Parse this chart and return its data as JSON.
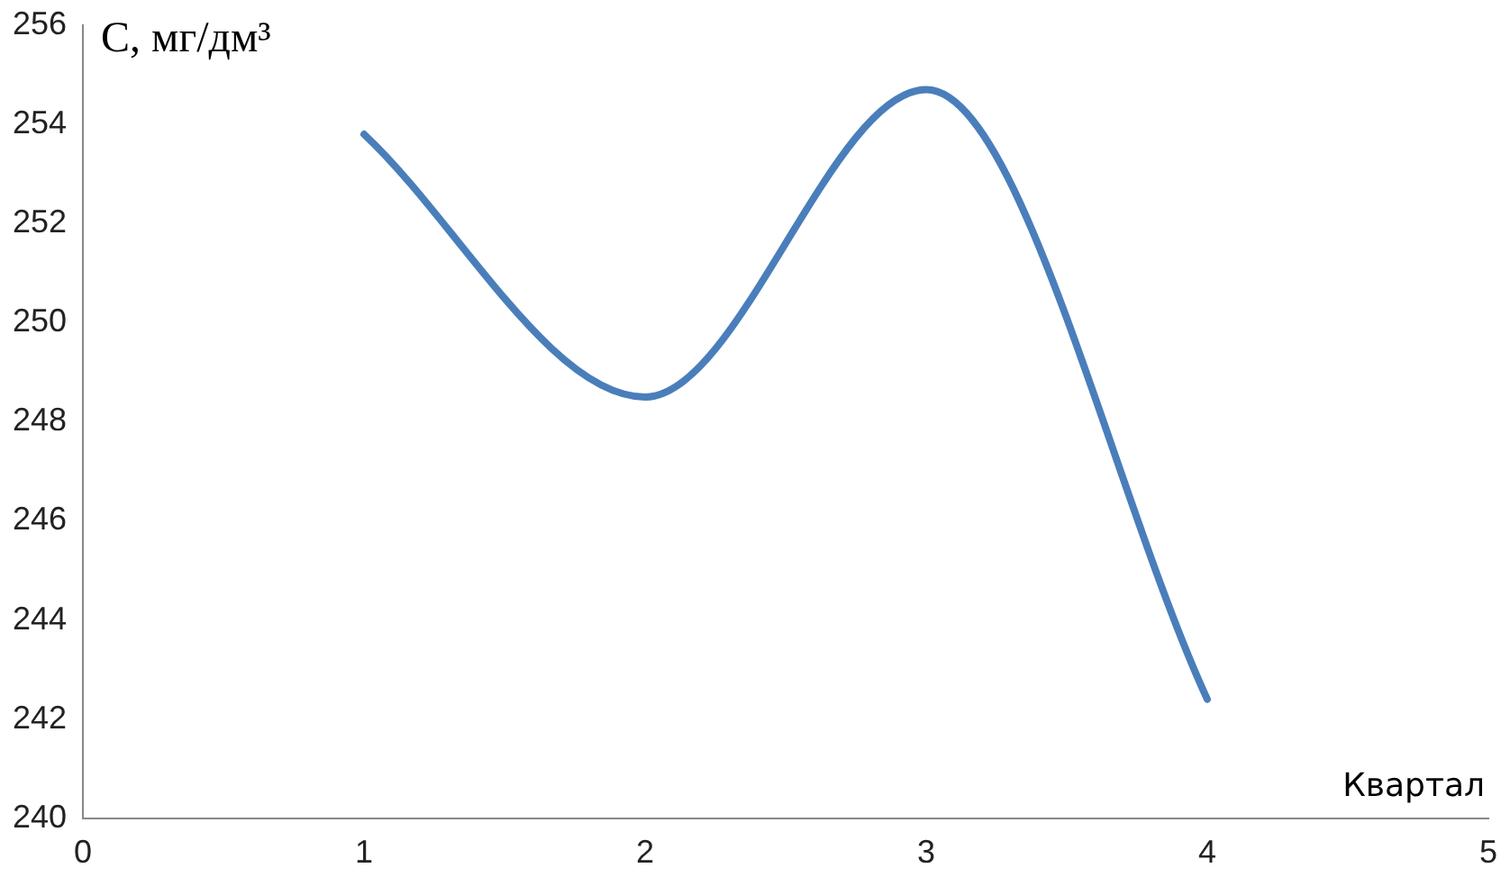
{
  "chart_data": {
    "type": "line",
    "xlabel": "Квартал",
    "ylabel": "C, мг/дм³",
    "series": [
      {
        "color": "#4a7ebb",
        "x": [
          1,
          2,
          3,
          4
        ],
        "values": [
          253.8,
          248.5,
          254.7,
          242.4
        ]
      }
    ],
    "xlim": [
      0,
      5
    ],
    "xticks": [
      0,
      1,
      2,
      3,
      4,
      5
    ],
    "ylim": [
      240,
      256
    ],
    "yticks": [
      240,
      242,
      244,
      246,
      248,
      250,
      252,
      254,
      256
    ],
    "grid": false,
    "legend": false,
    "marker": "none",
    "line_style": "solid"
  }
}
